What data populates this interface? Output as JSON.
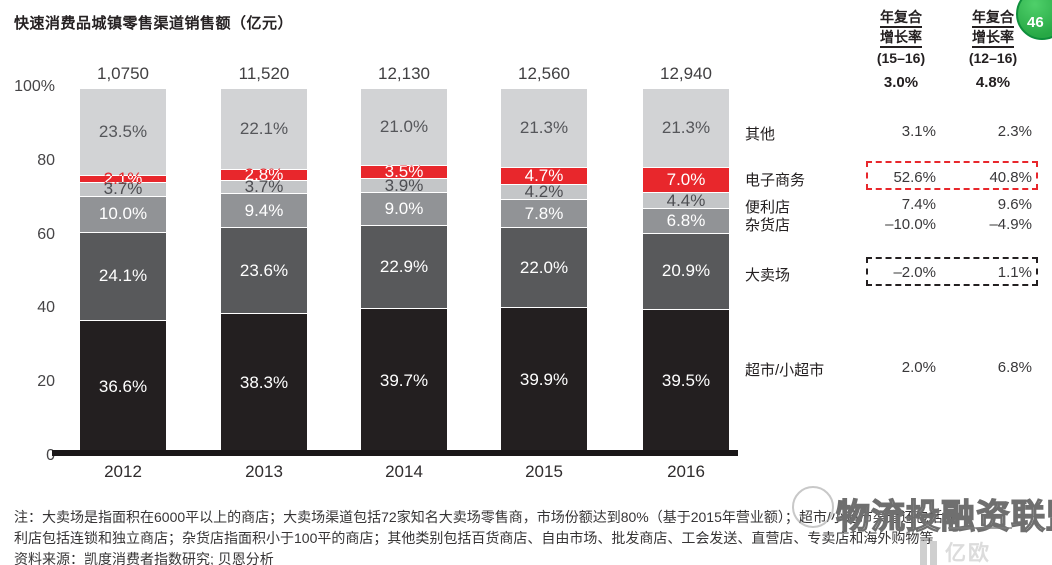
{
  "page": {
    "title": "快速消费品城镇零售渠道销售额（亿元）"
  },
  "badge": {
    "text": "46"
  },
  "cagr_header": {
    "col1": {
      "line1": "年复合",
      "line2": "增长率",
      "period": "(15–16)",
      "overall": "3.0%"
    },
    "col2": {
      "line1": "年复合",
      "line2": "增长率",
      "period": "(12–16)",
      "overall": "4.8%"
    }
  },
  "chart_data": {
    "type": "bar",
    "stacked": true,
    "title": "快速消费品城镇零售渠道销售额（亿元）",
    "unit": "亿元",
    "categories": [
      "2012",
      "2013",
      "2014",
      "2015",
      "2016"
    ],
    "totals": [
      "1,0750",
      "11,520",
      "12,130",
      "12,560",
      "12,940"
    ],
    "y_axis": {
      "ticks": [
        "100%",
        "80",
        "60",
        "40",
        "20",
        "0"
      ],
      "range": [
        0,
        100
      ],
      "grid": false
    },
    "series": [
      {
        "name": "其他",
        "color": "#d2d3d5",
        "label_color": "#55565a",
        "values": [
          23.5,
          22.1,
          21.0,
          21.3,
          21.3
        ]
      },
      {
        "name": "电子商务",
        "color": "#e8272c",
        "label_color": "#ffffff",
        "knockout": true,
        "values": [
          2.1,
          2.8,
          3.5,
          4.7,
          7.0
        ]
      },
      {
        "name": "便利店",
        "color": "#c4c6c8",
        "label_color": "#4d4e52",
        "values": [
          3.7,
          3.7,
          3.9,
          4.2,
          4.4
        ]
      },
      {
        "name": "杂货店",
        "color": "#919396",
        "label_color": "#ffffff",
        "values": [
          10.0,
          9.4,
          9.0,
          7.8,
          6.8
        ]
      },
      {
        "name": "大卖场",
        "color": "#58595b",
        "label_color": "#ffffff",
        "values": [
          24.1,
          23.6,
          22.9,
          22.0,
          20.9
        ]
      },
      {
        "name": "超市/小超市",
        "color": "#231f20",
        "label_color": "#ffffff",
        "values": [
          36.6,
          38.3,
          39.7,
          39.9,
          39.5
        ]
      }
    ],
    "cagr": {
      "columns": [
        "年复合增长率 (15–16)",
        "年复合增长率 (12–16)"
      ],
      "overall": [
        "3.0%",
        "4.8%"
      ],
      "rows": [
        {
          "name": "其他",
          "v1516": "3.1%",
          "v1216": "2.3%"
        },
        {
          "name": "电子商务",
          "v1516": "52.6%",
          "v1216": "40.8%",
          "highlight": "red-dashed"
        },
        {
          "name": "便利店",
          "v1516": "7.4%",
          "v1216": "9.6%"
        },
        {
          "name": "杂货店",
          "v1516": "–10.0%",
          "v1216": "–4.9%"
        },
        {
          "name": "大卖场",
          "v1516": "–2.0%",
          "v1216": "1.1%",
          "highlight": "black-dashed"
        },
        {
          "name": "超市/小超市",
          "v1516": "2.0%",
          "v1216": "6.8%"
        }
      ]
    }
  },
  "footnote": {
    "line1": "注：大卖场是指面积在6000平以上的商店；大卖场渠道包括72家知名大卖场零售商，市场份额达到80%（基于2015年营业额）；超市/小超市渠道还包括便",
    "line2": "利店包括连锁和独立商店；杂货店指面积小于100平的商店；其他类别包括百货商店、自由市场、批发商店、工会发送、直营店、专卖店和海外购物等",
    "source": "资料来源：凯度消费者指数研究; 贝恩分析"
  },
  "watermark": {
    "text": "物流投融资联盟",
    "logo": "亿欧"
  }
}
